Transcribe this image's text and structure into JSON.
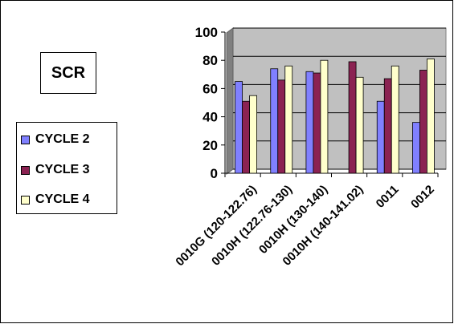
{
  "chart_data": {
    "type": "bar",
    "title": "SCR",
    "categories": [
      "0010G (120-122.76)",
      "0010H (122.76-130)",
      "0010H (130-140)",
      "0010H (140-141.02)",
      "0011",
      "0012"
    ],
    "series": [
      {
        "name": "CYCLE 2",
        "color": "#8080FF",
        "values": [
          65,
          74,
          72,
          null,
          51,
          36
        ]
      },
      {
        "name": "CYCLE 3",
        "color": "#8B2252",
        "values": [
          51,
          66,
          71,
          79,
          67,
          73
        ]
      },
      {
        "name": "CYCLE 4",
        "color": "#FFFFCC",
        "values": [
          55,
          76,
          80,
          68,
          76,
          81
        ]
      }
    ],
    "ylim": [
      0,
      100
    ],
    "yticks": [
      0,
      20,
      40,
      60,
      80,
      100
    ],
    "grid": true,
    "plot_background": "#C0C0C0",
    "legend_position": "left",
    "xlabel": "",
    "ylabel": ""
  }
}
